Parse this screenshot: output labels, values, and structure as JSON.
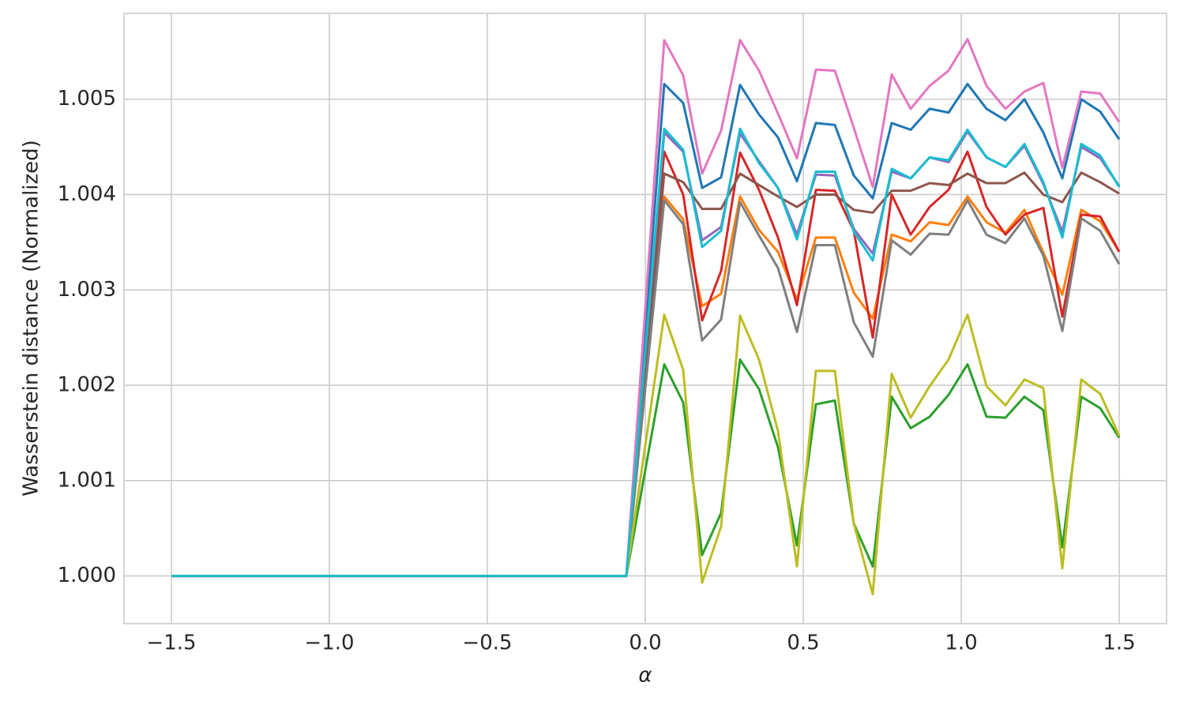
{
  "chart_data": {
    "type": "line",
    "xlabel": "α",
    "ylabel": "Wasserstein distance (Normalized)",
    "x": [
      -1.5,
      -1.44,
      -1.38,
      -1.32,
      -1.26,
      -1.2,
      -1.14,
      -1.08,
      -1.02,
      -0.96,
      -0.9,
      -0.84,
      -0.78,
      -0.72,
      -0.66,
      -0.6,
      -0.54,
      -0.48,
      -0.42,
      -0.36,
      -0.3,
      -0.24,
      -0.18,
      -0.12,
      -0.06,
      0,
      0.06,
      0.12,
      0.18,
      0.24,
      0.3,
      0.36,
      0.42,
      0.48,
      0.54,
      0.6,
      0.66,
      0.72,
      0.78,
      0.84,
      0.9,
      0.96,
      1.02,
      1.08,
      1.14,
      1.2,
      1.26,
      1.32,
      1.38,
      1.44,
      1.5
    ],
    "series": [
      {
        "color": "#1f77b4",
        "values": [
          1,
          1,
          1,
          1,
          1,
          1,
          1,
          1,
          1,
          1,
          1,
          1,
          1,
          1,
          1,
          1,
          1,
          1,
          1,
          1,
          1,
          1,
          1,
          1,
          1,
          1.00258,
          1.00516,
          1.00496,
          1.00407,
          1.00418,
          1.00515,
          1.00484,
          1.0046,
          1.00414,
          1.00475,
          1.00473,
          1.0042,
          1.00396,
          1.00475,
          1.00468,
          1.0049,
          1.00486,
          1.00516,
          1.0049,
          1.00478,
          1.005,
          1.00465,
          1.00417,
          1.005,
          1.00487,
          1.00458
        ]
      },
      {
        "color": "#ff7f0e",
        "values": [
          1,
          1,
          1,
          1,
          1,
          1,
          1,
          1,
          1,
          1,
          1,
          1,
          1,
          1,
          1,
          1,
          1,
          1,
          1,
          1,
          1,
          1,
          1,
          1,
          1,
          1.00199,
          1.00398,
          1.00374,
          1.00283,
          1.00296,
          1.00398,
          1.00363,
          1.0034,
          1.0029,
          1.00355,
          1.00355,
          1.00297,
          1.0027,
          1.00358,
          1.00351,
          1.00371,
          1.00368,
          1.00398,
          1.00371,
          1.0036,
          1.00384,
          1.00339,
          1.00295,
          1.00384,
          1.00372,
          1.0034
        ]
      },
      {
        "color": "#2ca02c",
        "values": [
          1,
          1,
          1,
          1,
          1,
          1,
          1,
          1,
          1,
          1,
          1,
          1,
          1,
          1,
          1,
          1,
          1,
          1,
          1,
          1,
          1,
          1,
          1,
          1,
          1,
          1.00111,
          1.00222,
          1.00182,
          1.00022,
          1.00066,
          1.00227,
          1.00196,
          1.00135,
          1.00032,
          1.0018,
          1.00184,
          1.00055,
          1.0001,
          1.00188,
          1.00155,
          1.00167,
          1.0019,
          1.00222,
          1.00167,
          1.00166,
          1.00188,
          1.00174,
          1.0003,
          1.00188,
          1.00176,
          1.00145
        ]
      },
      {
        "color": "#d62728",
        "values": [
          1,
          1,
          1,
          1,
          1,
          1,
          1,
          1,
          1,
          1,
          1,
          1,
          1,
          1,
          1,
          1,
          1,
          1,
          1,
          1,
          1,
          1,
          1,
          1,
          1,
          1.00223,
          1.00445,
          1.004,
          1.00268,
          1.0032,
          1.00444,
          1.00405,
          1.00355,
          1.00284,
          1.00405,
          1.00404,
          1.00362,
          1.0025,
          1.004,
          1.00358,
          1.00387,
          1.00405,
          1.00445,
          1.00387,
          1.00358,
          1.00379,
          1.00386,
          1.00272,
          1.00379,
          1.00377,
          1.0034
        ]
      },
      {
        "color": "#9467bd",
        "values": [
          1,
          1,
          1,
          1,
          1,
          1,
          1,
          1,
          1,
          1,
          1,
          1,
          1,
          1,
          1,
          1,
          1,
          1,
          1,
          1,
          1,
          1,
          1,
          1,
          1,
          1.00233,
          1.00465,
          1.00445,
          1.00352,
          1.00366,
          1.00464,
          1.00435,
          1.00407,
          1.00358,
          1.00421,
          1.0042,
          1.00364,
          1.00338,
          1.00424,
          1.00417,
          1.00439,
          1.00434,
          1.00466,
          1.00439,
          1.00429,
          1.00451,
          1.00411,
          1.00361,
          1.0045,
          1.00438,
          1.00409
        ]
      },
      {
        "color": "#8c564b",
        "values": [
          1,
          1,
          1,
          1,
          1,
          1,
          1,
          1,
          1,
          1,
          1,
          1,
          1,
          1,
          1,
          1,
          1,
          1,
          1,
          1,
          1,
          1,
          1,
          1,
          1,
          1.00211,
          1.00422,
          1.00413,
          1.00385,
          1.00385,
          1.00422,
          1.0041,
          1.00398,
          1.00387,
          1.004,
          1.004,
          1.00384,
          1.00381,
          1.00404,
          1.00404,
          1.00412,
          1.0041,
          1.00422,
          1.00412,
          1.00412,
          1.00423,
          1.004,
          1.00392,
          1.00423,
          1.00413,
          1.00401
        ]
      },
      {
        "color": "#e377c2",
        "values": [
          1,
          1,
          1,
          1,
          1,
          1,
          1,
          1,
          1,
          1,
          1,
          1,
          1,
          1,
          1,
          1,
          1,
          1,
          1,
          1,
          1,
          1,
          1,
          1,
          1,
          1.00281,
          1.00562,
          1.00525,
          1.00422,
          1.00467,
          1.00562,
          1.0053,
          1.00485,
          1.00438,
          1.00531,
          1.0053,
          1.0047,
          1.00408,
          1.00526,
          1.0049,
          1.00514,
          1.0053,
          1.00563,
          1.00514,
          1.0049,
          1.00508,
          1.00517,
          1.00428,
          1.00508,
          1.00506,
          1.00476
        ]
      },
      {
        "color": "#7f7f7f",
        "values": [
          1,
          1,
          1,
          1,
          1,
          1,
          1,
          1,
          1,
          1,
          1,
          1,
          1,
          1,
          1,
          1,
          1,
          1,
          1,
          1,
          1,
          1,
          1,
          1,
          1,
          1.00197,
          1.00394,
          1.00369,
          1.00247,
          1.00269,
          1.00392,
          1.00357,
          1.00323,
          1.00256,
          1.00347,
          1.00347,
          1.00266,
          1.0023,
          1.00352,
          1.00337,
          1.00359,
          1.00358,
          1.00394,
          1.00358,
          1.00349,
          1.00375,
          1.00336,
          1.00257,
          1.00375,
          1.00362,
          1.00327
        ]
      },
      {
        "color": "#bcbd22",
        "values": [
          1,
          1,
          1,
          1,
          1,
          1,
          1,
          1,
          1,
          1,
          1,
          1,
          1,
          1,
          1,
          1,
          1,
          1,
          1,
          1,
          1,
          1,
          1,
          1,
          1,
          1.00137,
          1.00274,
          1.00216,
          0.99993,
          1.00052,
          1.00273,
          1.00227,
          1.00152,
          1.0001,
          1.00215,
          1.00215,
          1.00055,
          0.99981,
          1.00212,
          1.00166,
          1.00199,
          1.00227,
          1.00274,
          1.00199,
          1.00179,
          1.00206,
          1.00197,
          1.00008,
          1.00206,
          1.00191,
          1.00147
        ]
      },
      {
        "color": "#17becf",
        "values": [
          1,
          1,
          1,
          1,
          1,
          1,
          1,
          1,
          1,
          1,
          1,
          1,
          1,
          1,
          1,
          1,
          1,
          1,
          1,
          1,
          1,
          1,
          1,
          1,
          1,
          1.00235,
          1.00469,
          1.00447,
          1.00345,
          1.00362,
          1.00469,
          1.00433,
          1.00407,
          1.00353,
          1.00424,
          1.00424,
          1.00361,
          1.00331,
          1.00427,
          1.00417,
          1.00439,
          1.00436,
          1.00468,
          1.00439,
          1.00429,
          1.00453,
          1.00413,
          1.00355,
          1.00453,
          1.00441,
          1.00408
        ]
      }
    ],
    "xlim": [
      -1.65,
      1.65
    ],
    "ylim": [
      0.9995,
      1.0059
    ],
    "xticks": [
      {
        "value": -1.5,
        "label": "−1.5"
      },
      {
        "value": -1,
        "label": "−1.0"
      },
      {
        "value": -0.5,
        "label": "−0.5"
      },
      {
        "value": 0,
        "label": "0.0"
      },
      {
        "value": 0.5,
        "label": "0.5"
      },
      {
        "value": 1,
        "label": "1.0"
      },
      {
        "value": 1.5,
        "label": "1.5"
      }
    ],
    "yticks": [
      {
        "value": 1,
        "label": "1.000"
      },
      {
        "value": 1.001,
        "label": "1.001"
      },
      {
        "value": 1.002,
        "label": "1.002"
      },
      {
        "value": 1.003,
        "label": "1.003"
      },
      {
        "value": 1.004,
        "label": "1.004"
      },
      {
        "value": 1.005,
        "label": "1.005"
      }
    ],
    "grid": true
  }
}
